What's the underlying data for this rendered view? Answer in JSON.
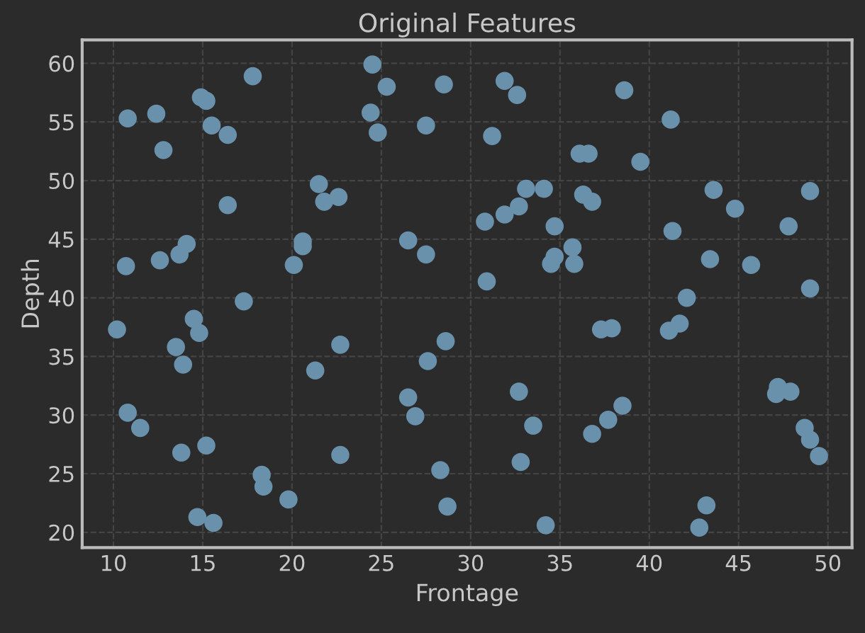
{
  "chart_data": {
    "type": "scatter",
    "title": "Original Features",
    "xlabel": "Frontage",
    "ylabel": "Depth",
    "x": [
      10.2,
      10.8,
      10.7,
      10.8,
      11.5,
      12.4,
      12.6,
      12.8,
      13.5,
      13.7,
      14.1,
      13.9,
      13.8,
      14.5,
      14.8,
      14.9,
      15.2,
      15.5,
      15.2,
      14.7,
      15.6,
      16.4,
      16.4,
      17.3,
      17.8,
      18.3,
      18.4,
      19.8,
      20.1,
      20.6,
      20.6,
      21.5,
      21.8,
      21.3,
      22.6,
      22.7,
      22.7,
      24.5,
      24.4,
      24.8,
      25.3,
      26.5,
      26.5,
      26.9,
      27.5,
      27.5,
      27.6,
      28.5,
      28.6,
      28.3,
      28.7,
      31.2,
      30.8,
      30.9,
      31.9,
      31.9,
      32.7,
      32.6,
      33.1,
      34.1,
      32.7,
      32.8,
      33.5,
      34.7,
      34.5,
      34.7,
      34.2,
      35.7,
      35.8,
      36.1,
      36.6,
      36.3,
      36.8,
      36.8,
      37.3,
      37.9,
      37.7,
      38.5,
      38.6,
      39.5,
      41.2,
      41.3,
      41.1,
      41.7,
      42.1,
      42.8,
      43.2,
      43.4,
      43.6,
      44.8,
      45.7,
      47.8,
      49.0,
      49.0,
      47.1,
      47.2,
      47.9,
      48.7,
      49.0,
      49.5
    ],
    "values": [
      37.3,
      55.3,
      42.7,
      30.2,
      28.9,
      55.7,
      43.2,
      52.6,
      35.8,
      43.7,
      44.6,
      34.3,
      26.8,
      38.2,
      37.0,
      57.1,
      56.8,
      54.7,
      27.4,
      21.3,
      20.8,
      53.9,
      47.9,
      39.7,
      58.9,
      24.9,
      23.9,
      22.8,
      42.8,
      44.8,
      44.4,
      49.7,
      48.2,
      33.8,
      48.6,
      36.0,
      26.6,
      59.9,
      55.8,
      54.1,
      58.0,
      44.9,
      31.5,
      29.9,
      43.7,
      54.7,
      34.6,
      58.2,
      36.3,
      25.3,
      22.2,
      53.8,
      46.5,
      41.4,
      58.5,
      47.1,
      47.8,
      57.3,
      49.3,
      49.3,
      32.0,
      26.0,
      29.1,
      46.1,
      42.9,
      43.5,
      20.6,
      44.3,
      42.9,
      52.3,
      52.3,
      48.8,
      48.2,
      28.4,
      37.3,
      37.4,
      29.6,
      30.8,
      57.7,
      51.6,
      55.2,
      45.7,
      37.2,
      37.8,
      40.0,
      20.4,
      22.3,
      43.3,
      49.2,
      47.6,
      42.8,
      46.1,
      49.1,
      40.8,
      31.8,
      32.4,
      32.0,
      28.9,
      27.9,
      26.5
    ],
    "color": "#6a91ab",
    "marker": "circle",
    "xlim": [
      8.25,
      51.35
    ],
    "ylim": [
      18.7,
      62.0
    ],
    "xticks": [
      10,
      15,
      20,
      25,
      30,
      35,
      40,
      45,
      50
    ],
    "yticks": [
      20,
      25,
      30,
      35,
      40,
      45,
      50,
      55,
      60
    ],
    "grid": true
  }
}
